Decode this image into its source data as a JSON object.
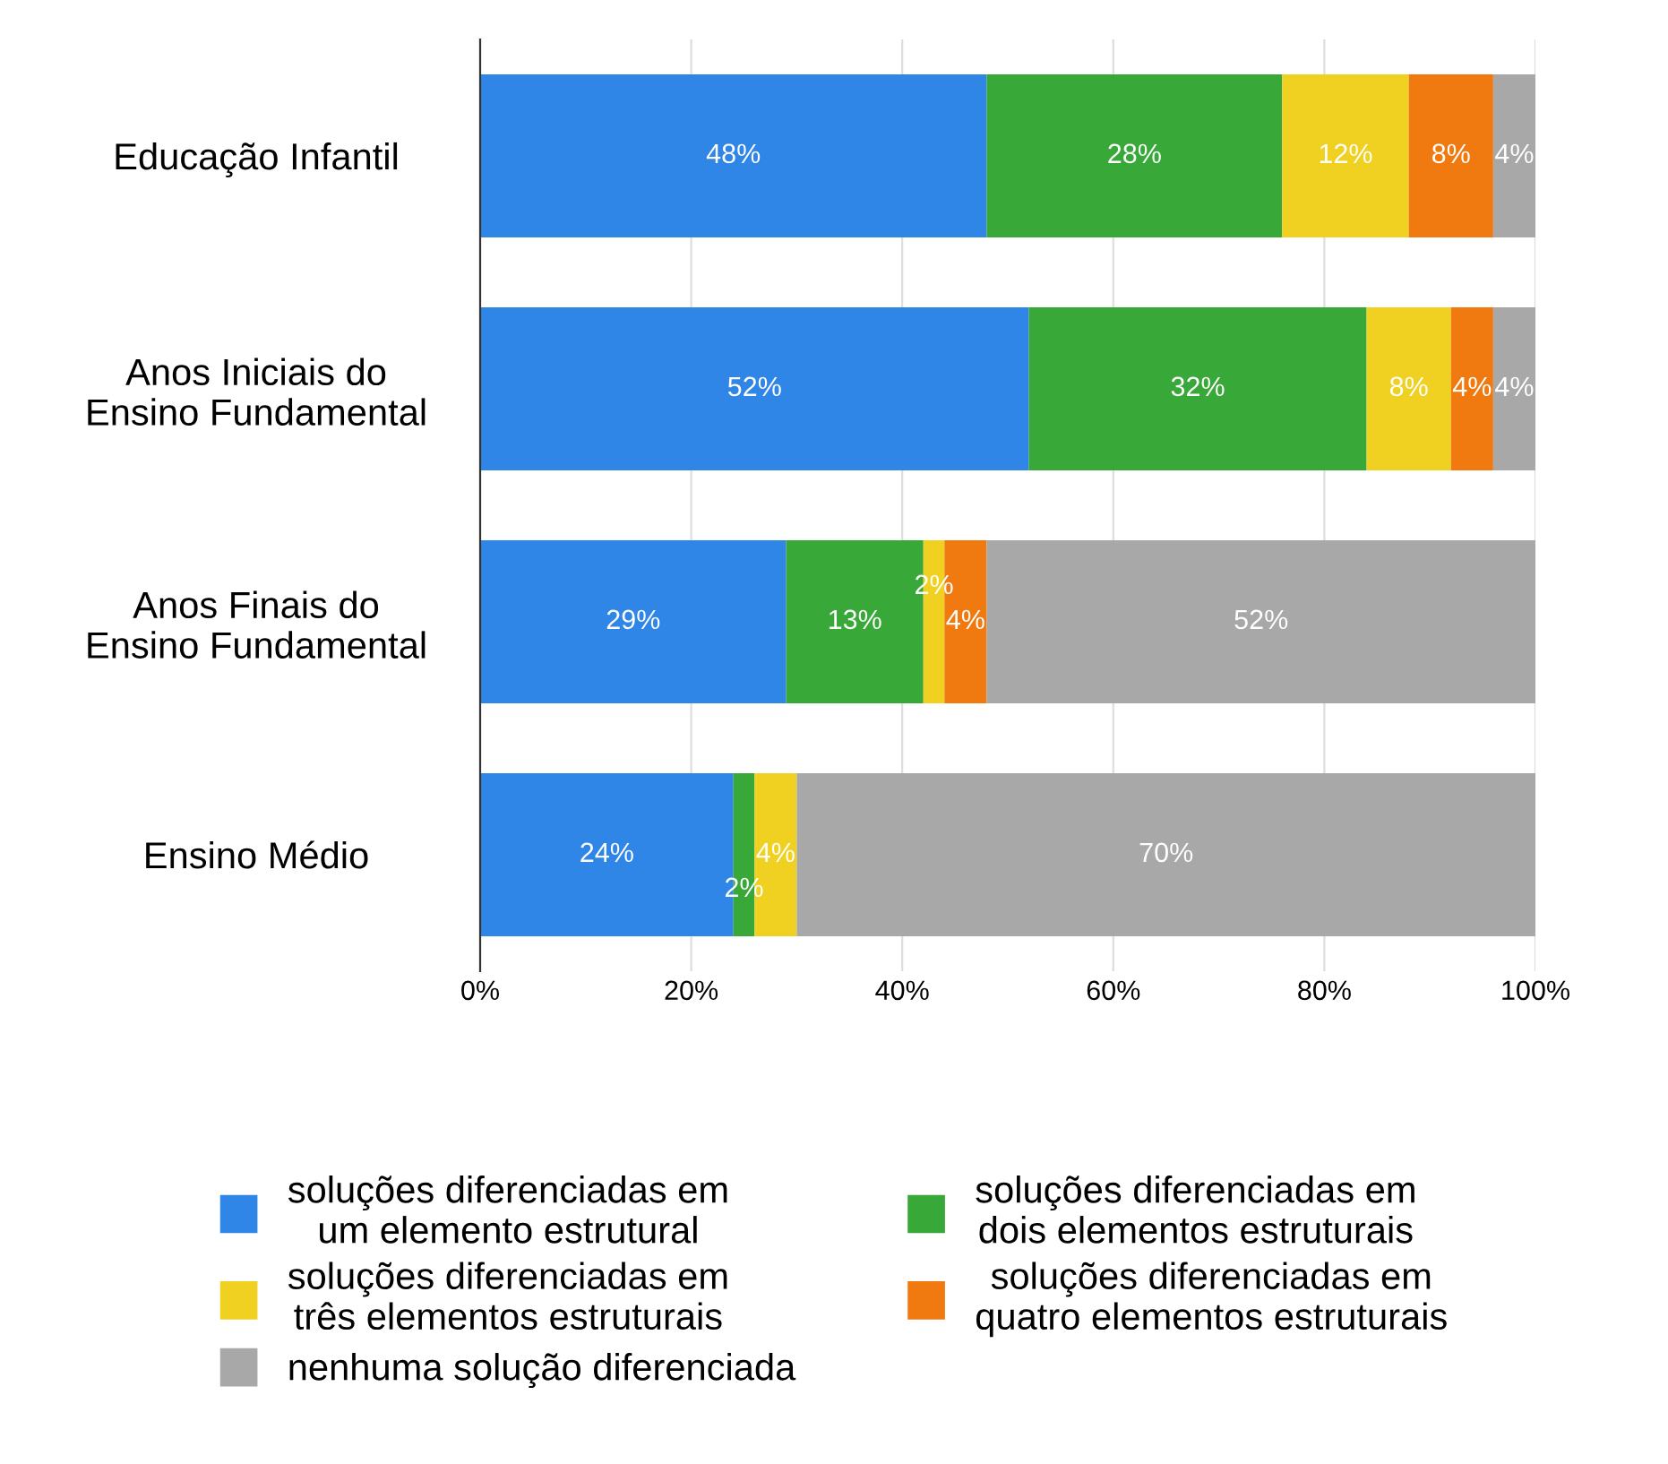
{
  "chart_data": {
    "type": "bar",
    "orientation": "horizontal",
    "stacked": true,
    "categories": [
      "Educação Infantil",
      "Anos Iniciais do\nEnsino Fundamental",
      "Anos Finais do\nEnsino Fundamental",
      "Ensino Médio"
    ],
    "series": [
      {
        "name": "soluções diferenciadas em\num elemento estrutural",
        "color": "#2f86e6",
        "values": [
          48,
          52,
          29,
          24
        ],
        "value_labels": [
          "48%",
          "52%",
          "29%",
          "24%"
        ]
      },
      {
        "name": "soluções diferenciadas em\ndois elementos estruturais",
        "color": "#38a838",
        "values": [
          28,
          32,
          13,
          2
        ],
        "value_labels": [
          "28%",
          "32%",
          "13%",
          "2%"
        ]
      },
      {
        "name": "soluções diferenciadas em\ntrês elementos estruturais",
        "color": "#f0d020",
        "values": [
          12,
          8,
          2,
          4
        ],
        "value_labels": [
          "12%",
          "8%",
          "2%",
          "4%"
        ]
      },
      {
        "name": "soluções diferenciadas em\nquatro elementos estruturais",
        "color": "#f07a10",
        "values": [
          8,
          4,
          4,
          0
        ],
        "value_labels": [
          "8%",
          "4%",
          "4%",
          null
        ]
      },
      {
        "name": "nenhuma solução diferenciada",
        "color": "#a8a8a8",
        "values": [
          4,
          4,
          52,
          70
        ],
        "value_labels": [
          "4%",
          "4%",
          "52%",
          "70%"
        ]
      }
    ],
    "xlim": [
      0,
      100
    ],
    "xticks": [
      {
        "value": 0,
        "label": "0%"
      },
      {
        "value": 20,
        "label": "20%"
      },
      {
        "value": 40,
        "label": "40%"
      },
      {
        "value": 60,
        "label": "60%"
      },
      {
        "value": 80,
        "label": "80%"
      },
      {
        "value": 100,
        "label": "100%"
      }
    ],
    "grid": "x",
    "legend": "bottom"
  }
}
